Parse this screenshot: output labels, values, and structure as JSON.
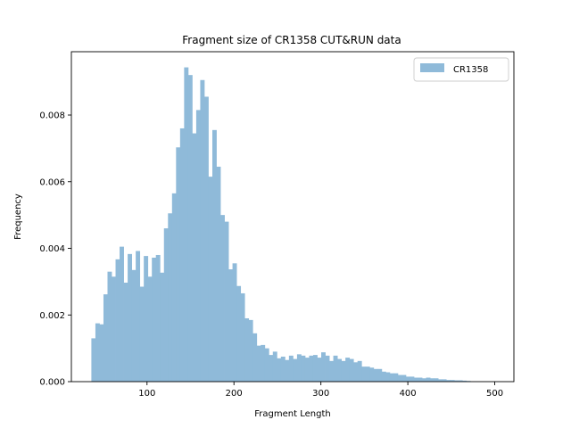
{
  "chart_data": {
    "type": "bar",
    "title": "Fragment size of CR1358 CUT&RUN data",
    "xlabel": "Fragment Length",
    "ylabel": "Frequency",
    "xlim": [
      13,
      522
    ],
    "ylim": [
      0,
      0.0099
    ],
    "x_ticks": [
      100,
      200,
      300,
      400,
      500
    ],
    "x_tick_labels": [
      "100",
      "200",
      "300",
      "400",
      "500"
    ],
    "y_ticks": [
      0,
      0.002,
      0.004,
      0.006,
      0.008
    ],
    "y_tick_labels": [
      "0.000",
      "0.002",
      "0.004",
      "0.006",
      "0.008"
    ],
    "bar_color": "#8fbad9",
    "legend": {
      "position": "upper right"
    },
    "series": [
      {
        "name": "CR1358",
        "bin_start": 36,
        "bin_width": 4.638,
        "values": [
          0.0013,
          0.00175,
          0.00172,
          0.00262,
          0.0033,
          0.00315,
          0.00367,
          0.00405,
          0.00297,
          0.00383,
          0.00335,
          0.00392,
          0.00285,
          0.00377,
          0.00315,
          0.00372,
          0.0038,
          0.00327,
          0.0046,
          0.00505,
          0.00565,
          0.00703,
          0.0076,
          0.00943,
          0.0092,
          0.00745,
          0.00815,
          0.00905,
          0.00855,
          0.00615,
          0.00755,
          0.00645,
          0.005,
          0.0048,
          0.00337,
          0.00355,
          0.00287,
          0.00265,
          0.0019,
          0.00185,
          0.00145,
          0.00108,
          0.0011,
          0.001,
          0.0008,
          0.0009,
          0.0007,
          0.00075,
          0.00065,
          0.00078,
          0.00068,
          0.00082,
          0.00078,
          0.00072,
          0.00078,
          0.0008,
          0.00072,
          0.00088,
          0.00078,
          0.00062,
          0.00078,
          0.00068,
          0.00062,
          0.00072,
          0.00068,
          0.00058,
          0.00062,
          0.00045,
          0.00045,
          0.00042,
          0.00038,
          0.00038,
          0.0003,
          0.00028,
          0.00025,
          0.00025,
          0.0002,
          0.0002,
          0.00015,
          0.00015,
          0.00012,
          0.00012,
          0.0001,
          0.00012,
          0.0001,
          0.0001,
          7e-05,
          7e-05,
          5e-05,
          5e-05,
          4e-05,
          4e-05,
          3e-05,
          2e-05
        ]
      }
    ]
  }
}
